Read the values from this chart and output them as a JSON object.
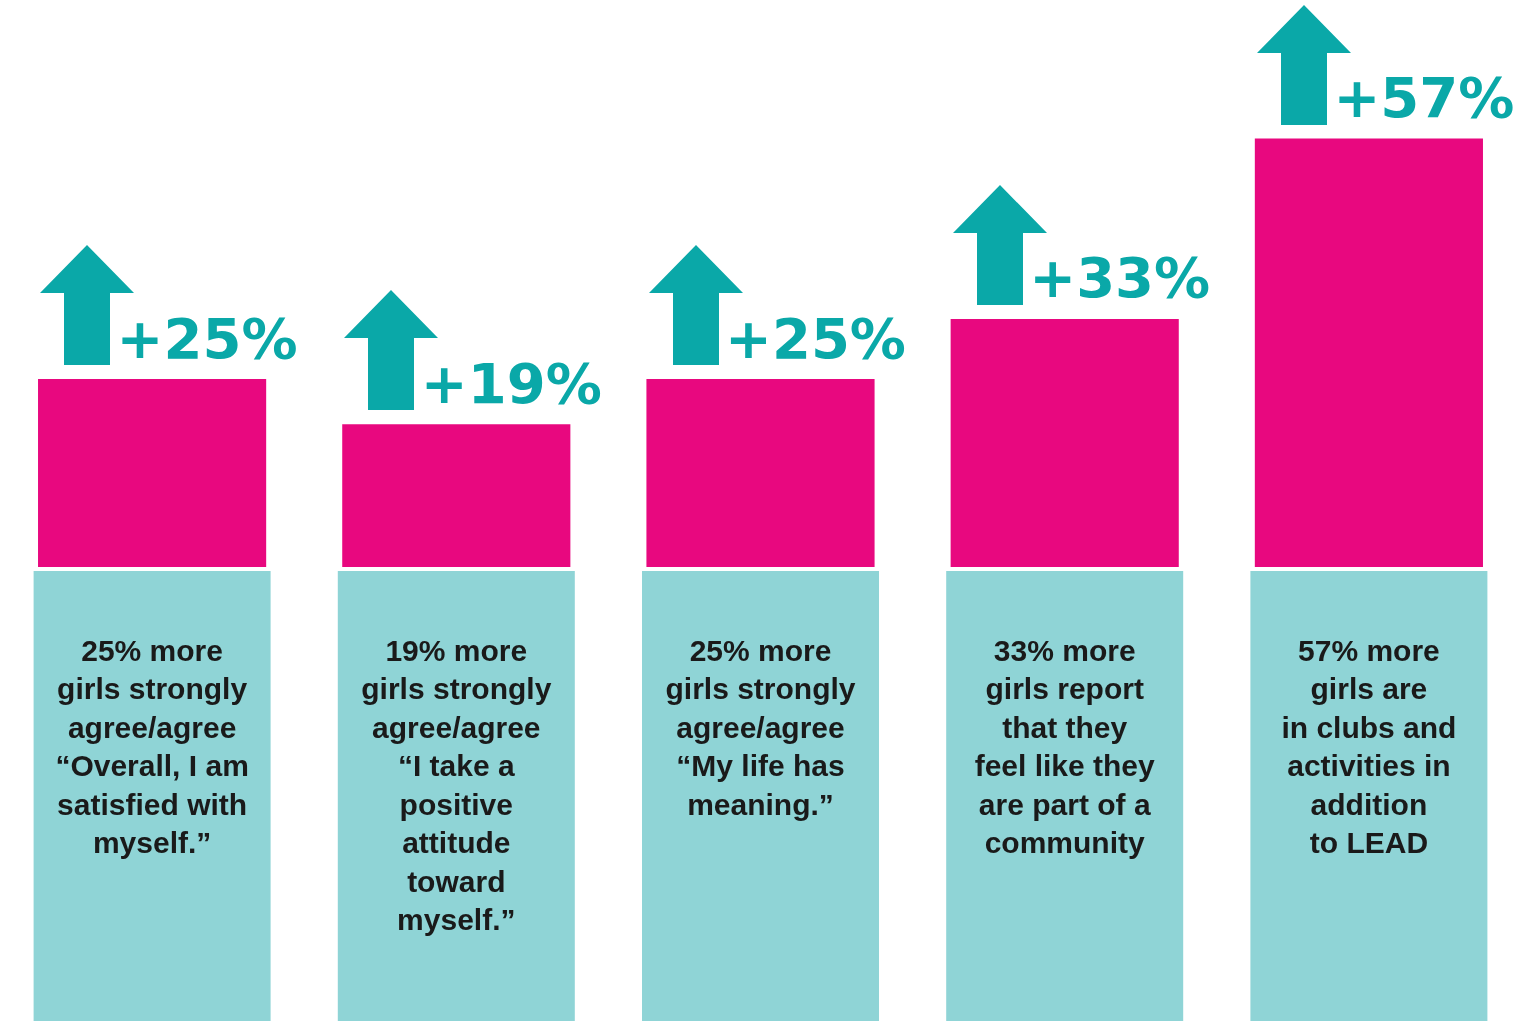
{
  "chart_data": {
    "type": "bar",
    "categories": [
      "25% more\ngirls strongly\nagree/agree\n“Overall, I am\nsatisfied with\nmyself.”",
      "19% more\ngirls strongly\nagree/agree\n“I take a\npositive\nattitude\ntoward\nmyself.”",
      "25% more\ngirls strongly\nagree/agree\n“My life has\nmeaning.”",
      "33% more\ngirls report\nthat they\nfeel like they\nare part of a\ncommunity",
      "57% more\ngirls are\nin clubs and\nactivities in\naddition\nto LEAD"
    ],
    "values": [
      25,
      19,
      25,
      33,
      57
    ],
    "value_labels": [
      "+25%",
      "+19%",
      "+25%",
      "+33%",
      "+57%"
    ],
    "color": "#e8087f"
  }
}
